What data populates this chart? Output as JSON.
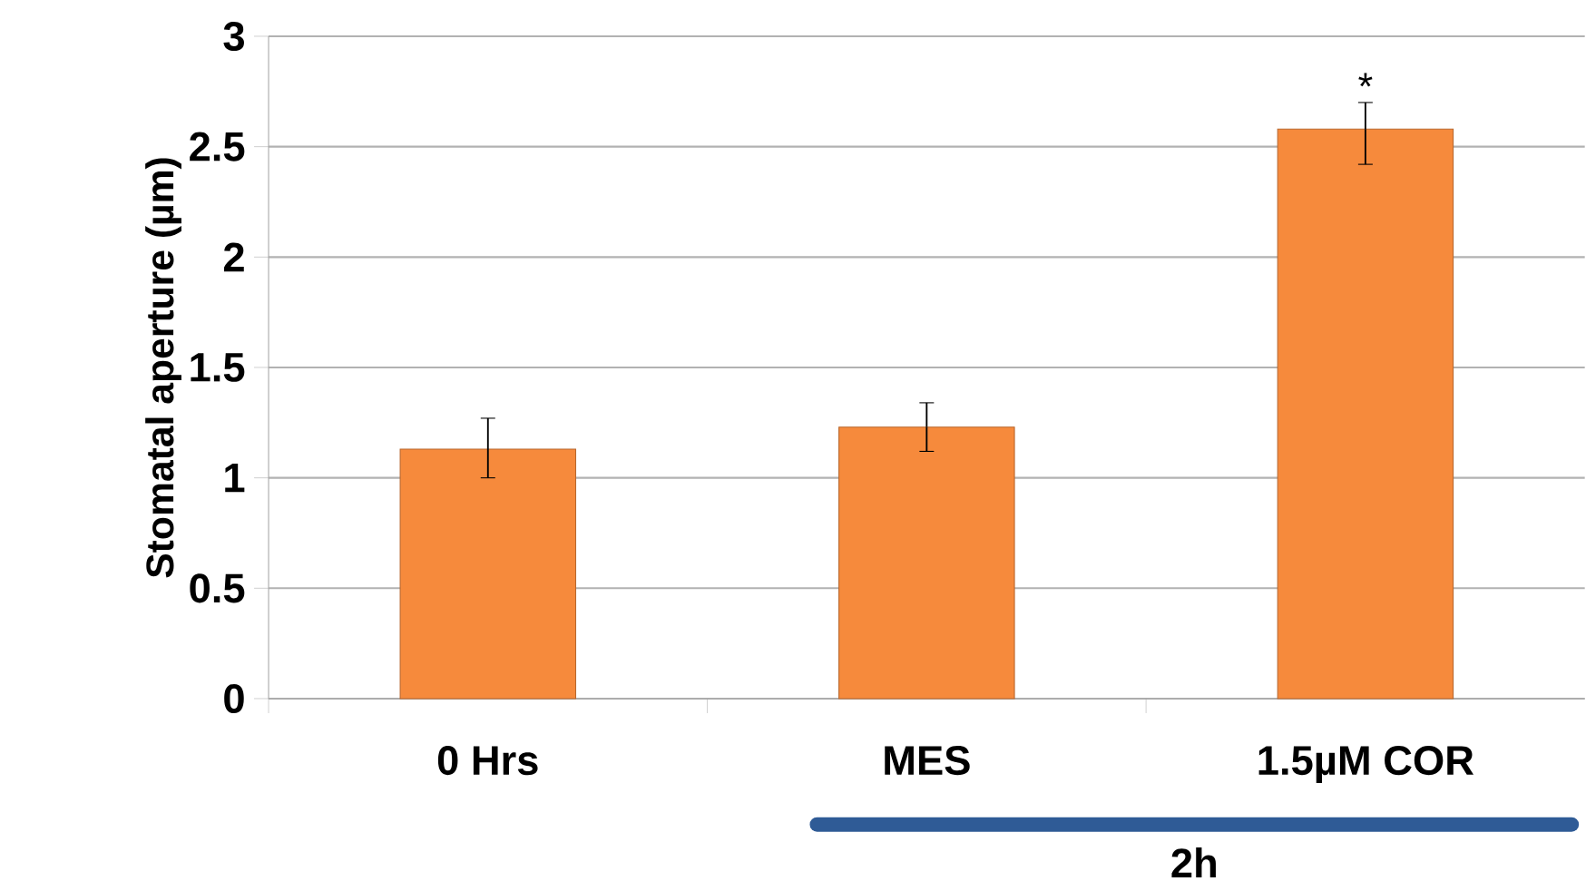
{
  "chart_data": {
    "type": "bar",
    "ylabel": "Stomatal aperture (µm)",
    "categories": [
      "0 Hrs",
      "MES",
      "1.5µM COR"
    ],
    "values": [
      1.13,
      1.23,
      2.58
    ],
    "errors": [
      [
        1.0,
        1.27
      ],
      [
        1.12,
        1.34
      ],
      [
        2.42,
        2.7
      ]
    ],
    "color": "#f68a3c",
    "ylim": [
      0,
      3
    ],
    "yticks": [
      0,
      0.5,
      1,
      1.5,
      2,
      2.5,
      3
    ],
    "grid": "y",
    "annotations": [
      "*",
      "2h"
    ]
  }
}
